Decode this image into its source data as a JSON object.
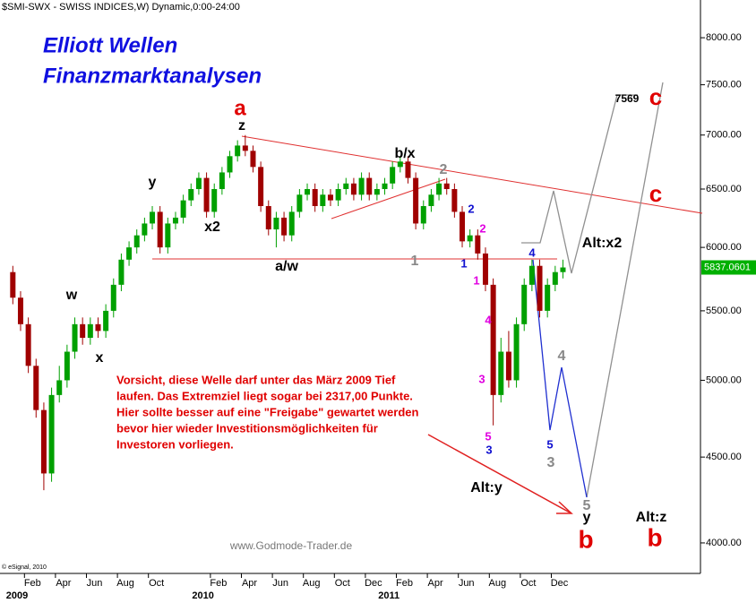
{
  "chart_data": {
    "type": "candlestick",
    "title": "$SMI-SWX - SWISS INDICES,W) Dynamic,0:00-24:00",
    "x": [
      "2009-01",
      "2009-01",
      "2009-02",
      "2009-02",
      "2009-03",
      "2009-03",
      "2009-04",
      "2009-04",
      "2009-05",
      "2009-05",
      "2009-06",
      "2009-06",
      "2009-07",
      "2009-07",
      "2009-08",
      "2009-08",
      "2009-09",
      "2009-09",
      "2009-10",
      "2009-10",
      "2009-11",
      "2009-11",
      "2009-12",
      "2009-12",
      "2010-01",
      "2010-01",
      "2010-02",
      "2010-02",
      "2010-03",
      "2010-03",
      "2010-04",
      "2010-04",
      "2010-05",
      "2010-05",
      "2010-06",
      "2010-06",
      "2010-07",
      "2010-07",
      "2010-08",
      "2010-08",
      "2010-09",
      "2010-09",
      "2010-10",
      "2010-10",
      "2010-11",
      "2010-11",
      "2010-12",
      "2010-12",
      "2011-01",
      "2011-01",
      "2011-02",
      "2011-02",
      "2011-03",
      "2011-03",
      "2011-04",
      "2011-04",
      "2011-05",
      "2011-05",
      "2011-06",
      "2011-06",
      "2011-07",
      "2011-07",
      "2011-08",
      "2011-08",
      "2011-09",
      "2011-09",
      "2011-10",
      "2011-10",
      "2011-11",
      "2011-11",
      "2011-12",
      "2011-12"
    ],
    "open": [
      5800,
      5600,
      5400,
      5100,
      4800,
      4400,
      4900,
      5000,
      5200,
      5400,
      5300,
      5400,
      5350,
      5500,
      5700,
      5900,
      6000,
      6100,
      6200,
      6300,
      6000,
      6200,
      6250,
      6400,
      6500,
      6600,
      6300,
      6500,
      6650,
      6800,
      6900,
      6850,
      6700,
      6350,
      6150,
      6250,
      6100,
      6300,
      6450,
      6500,
      6350,
      6450,
      6400,
      6500,
      6550,
      6450,
      6600,
      6450,
      6500,
      6550,
      6700,
      6750,
      6600,
      6200,
      6350,
      6450,
      6550,
      6500,
      6300,
      6050,
      6100,
      5950,
      5700,
      4900,
      5200,
      5000,
      5400,
      5700,
      5850,
      5500,
      5700,
      5800
    ],
    "high": [
      5850,
      5650,
      5450,
      5150,
      4850,
      4950,
      5100,
      5250,
      5450,
      5450,
      5450,
      5450,
      5550,
      5750,
      5950,
      6050,
      6150,
      6250,
      6350,
      6350,
      6250,
      6300,
      6450,
      6550,
      6650,
      6650,
      6550,
      6700,
      6850,
      6950,
      7000,
      6900,
      6750,
      6400,
      6300,
      6300,
      6350,
      6500,
      6550,
      6550,
      6500,
      6500,
      6550,
      6600,
      6600,
      6650,
      6650,
      6550,
      6600,
      6750,
      6800,
      6800,
      6650,
      6400,
      6500,
      6600,
      6600,
      6550,
      6350,
      6150,
      6150,
      6000,
      5750,
      5300,
      5350,
      5450,
      5750,
      5900,
      5900,
      5750,
      5850,
      5900
    ],
    "low": [
      5550,
      5350,
      5050,
      4750,
      4300,
      4350,
      4850,
      4950,
      5150,
      5250,
      5250,
      5300,
      5300,
      5450,
      5650,
      5850,
      5950,
      6050,
      6150,
      5950,
      5950,
      6150,
      6200,
      6350,
      6450,
      6250,
      6250,
      6450,
      6600,
      6750,
      6800,
      6650,
      6300,
      6100,
      6000,
      6050,
      6050,
      6250,
      6400,
      6300,
      6300,
      6350,
      6350,
      6450,
      6400,
      6400,
      6400,
      6400,
      6450,
      6500,
      6650,
      6550,
      6150,
      6150,
      6300,
      6400,
      6450,
      6250,
      6000,
      6000,
      5900,
      5650,
      4700,
      4850,
      4950,
      4950,
      5350,
      5650,
      5450,
      5450,
      5650,
      5750
    ],
    "close": [
      5600,
      5400,
      5100,
      4800,
      4400,
      4900,
      5000,
      5200,
      5400,
      5300,
      5400,
      5350,
      5500,
      5700,
      5900,
      6000,
      6100,
      6200,
      6300,
      6000,
      6200,
      6250,
      6400,
      6500,
      6600,
      6300,
      6500,
      6650,
      6800,
      6900,
      6850,
      6700,
      6350,
      6150,
      6250,
      6100,
      6300,
      6450,
      6500,
      6350,
      6450,
      6400,
      6500,
      6550,
      6450,
      6600,
      6450,
      6500,
      6550,
      6700,
      6750,
      6600,
      6200,
      6350,
      6450,
      6550,
      6500,
      6300,
      6050,
      6100,
      5950,
      5700,
      4900,
      5200,
      5000,
      5400,
      5700,
      5850,
      5500,
      5700,
      5800,
      5837.0601
    ],
    "up_color": "#00a000",
    "down_color": "#a00000",
    "log_scale": true,
    "ylim": [
      3836,
      8425
    ],
    "yticks": [
      {
        "value": 4000,
        "label": "4000.00"
      },
      {
        "value": 4500,
        "label": "4500.00"
      },
      {
        "value": 5000,
        "label": "5000.00"
      },
      {
        "value": 5500,
        "label": "5500.00"
      },
      {
        "value": 6000,
        "label": "6000.00"
      },
      {
        "value": 6500,
        "label": "6500.00"
      },
      {
        "value": 7000,
        "label": "7000.00"
      },
      {
        "value": 7500,
        "label": "7500.00"
      },
      {
        "value": 8000,
        "label": "8000.00"
      }
    ],
    "xticks": [
      {
        "value": "2009-02",
        "label": "Feb"
      },
      {
        "value": "2009-04",
        "label": "Apr"
      },
      {
        "value": "2009-06",
        "label": "Jun"
      },
      {
        "value": "2009-08",
        "label": "Aug"
      },
      {
        "value": "2009-10",
        "label": "Oct"
      },
      {
        "value": "2010-02",
        "label": "Feb"
      },
      {
        "value": "2010-04",
        "label": "Apr"
      },
      {
        "value": "2010-06",
        "label": "Jun"
      },
      {
        "value": "2010-08",
        "label": "Aug"
      },
      {
        "value": "2010-10",
        "label": "Oct"
      },
      {
        "value": "2010-12",
        "label": "Dec"
      },
      {
        "value": "2011-02",
        "label": "Feb"
      },
      {
        "value": "2011-04",
        "label": "Apr"
      },
      {
        "value": "2011-06",
        "label": "Jun"
      },
      {
        "value": "2011-08",
        "label": "Aug"
      },
      {
        "value": "2011-10",
        "label": "Oct"
      },
      {
        "value": "2011-12",
        "label": "Dec"
      }
    ],
    "year_ticks": [
      {
        "value": "2009-01",
        "label": "2009"
      },
      {
        "value": "2010-01",
        "label": "2010"
      },
      {
        "value": "2011-01",
        "label": "2011"
      }
    ],
    "annotations": [
      "Elliott Wellen",
      "Finanzmarktanalysen",
      "a",
      "z",
      "b/x",
      "2",
      "y",
      "x2",
      "w",
      "x",
      "a/w",
      "1",
      "2",
      "2",
      "1",
      "1",
      "4",
      "3",
      "5",
      "3",
      "4",
      "5",
      "3",
      "4",
      "5",
      "y",
      "b",
      "b",
      "c",
      "c",
      "7569",
      "Alt:x2",
      "Alt:y",
      "Alt:z",
      "Vorsicht, diese Welle darf unter das März 2009 Tief",
      "laufen. Das Extremziel liegt sogar bei 2317,00 Punkte.",
      "Hier sollte besser auf eine \"Freigabe\" gewartet werden",
      "bevor hier wieder Investitionsmöglichkeiten für",
      "Investoren vorliegen.",
      "www.Godmode-Trader.de",
      "© eSignal, 2010"
    ]
  }
}
